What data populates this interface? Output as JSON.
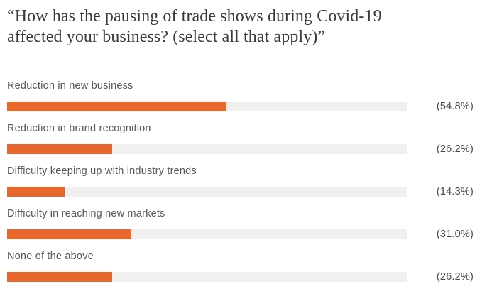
{
  "title": {
    "line1": "“How has the pausing of trade shows during Covid-19",
    "line2": "affected your business? (select all that apply)”"
  },
  "chart_data": {
    "type": "bar",
    "orientation": "horizontal",
    "title": "“How has the pausing of trade shows during Covid-19 affected your business? (select all that apply)”",
    "categories": [
      "Reduction in new business",
      "Reduction in brand recognition",
      "Difficulty keeping up with industry trends",
      "Difficulty in reaching new markets",
      "None of the above"
    ],
    "values": [
      54.8,
      26.2,
      14.3,
      31.0,
      26.2
    ],
    "value_labels": [
      "(54.8%)",
      "(26.2%)",
      "(14.3%)",
      "(31.0%)",
      "(26.2%)"
    ],
    "xlim": [
      0,
      100
    ],
    "grid": false,
    "legend": false,
    "colors": {
      "bar_fill": "#e8672c",
      "bar_track": "#f1f0ee",
      "title_text": "#3b3a36",
      "label_text": "#55565a",
      "value_text": "#4a4a4c",
      "background": "#ffffff"
    }
  }
}
